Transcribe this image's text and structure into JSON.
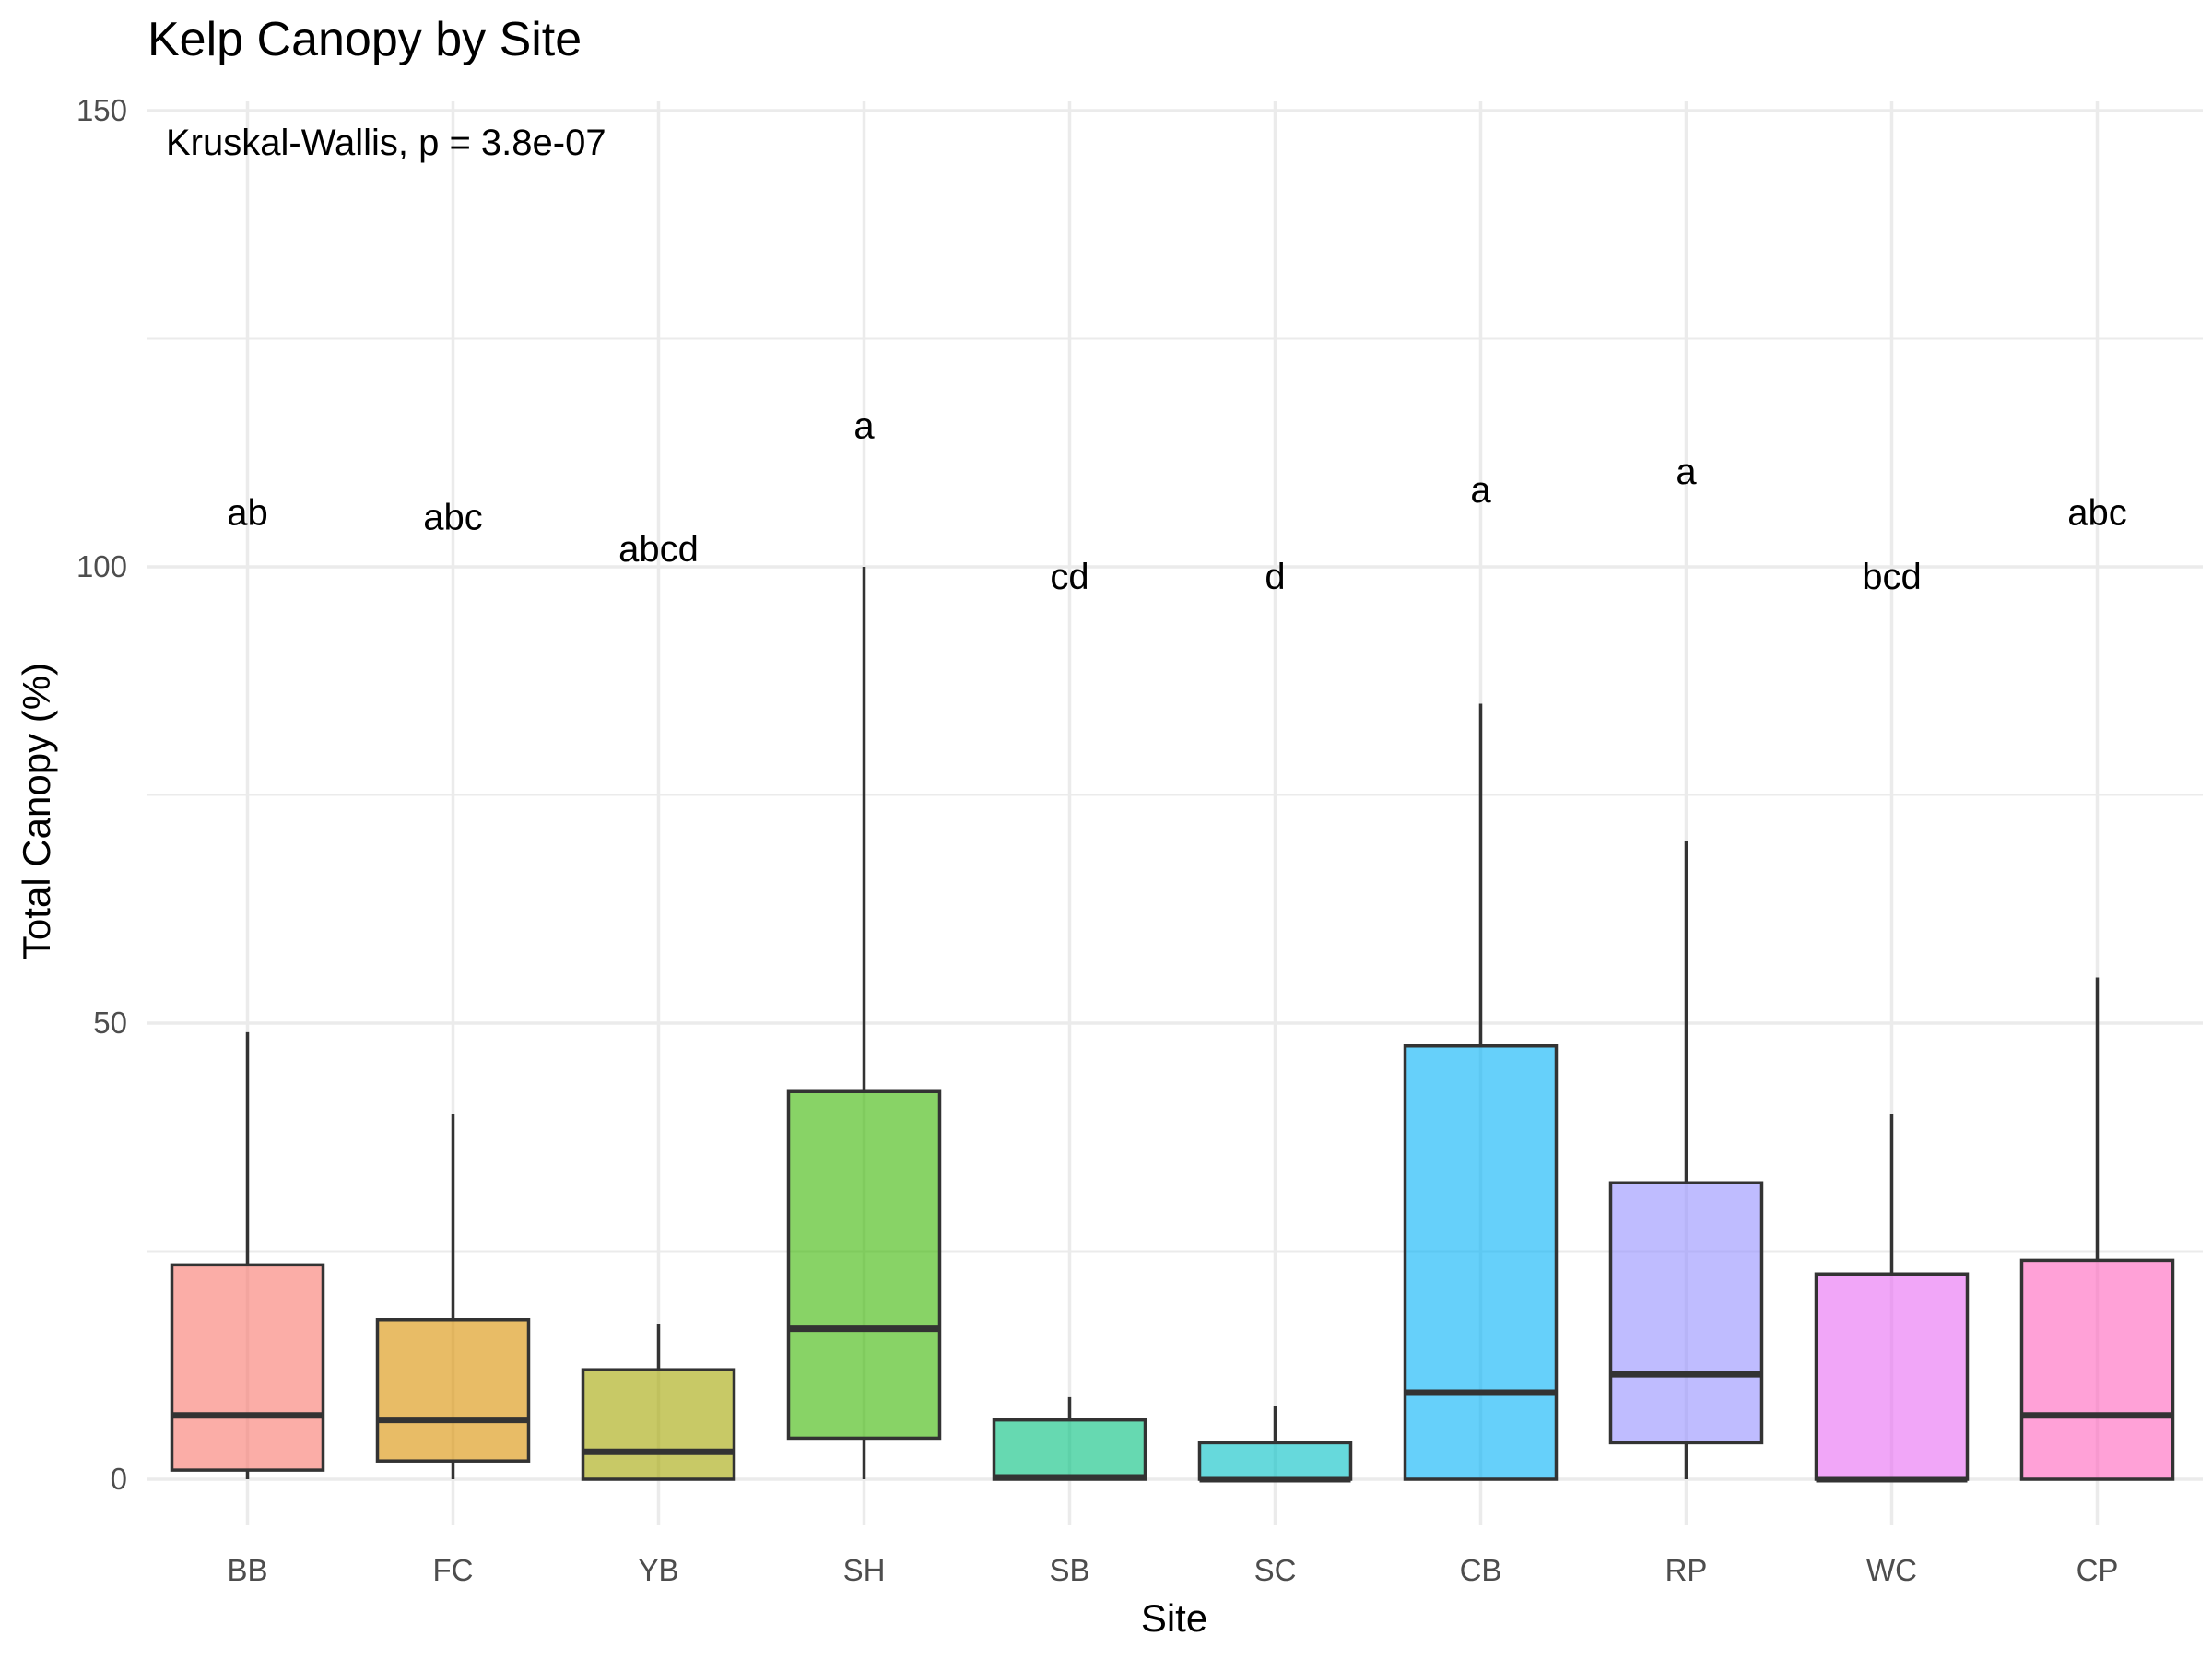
{
  "chart_data": {
    "type": "boxplot",
    "title": "Kelp Canopy by Site",
    "xlabel": "Site",
    "ylabel": "Total Canopy (%)",
    "ylim": [
      -4,
      150
    ],
    "y_ticks": [
      0,
      50,
      100,
      150
    ],
    "grid": true,
    "legend": "none",
    "annotation": "Kruskal-Wallis, p = 3.8e-07",
    "categories": [
      "BB",
      "FC",
      "YB",
      "SH",
      "SB",
      "SC",
      "CB",
      "RP",
      "WC",
      "CP"
    ],
    "boxes": [
      {
        "site": "BB",
        "min": 0,
        "q1": 1,
        "median": 7,
        "q3": 23.5,
        "max": 49,
        "letter": "ab",
        "letter_y": 106,
        "color": "#F8766D"
      },
      {
        "site": "FC",
        "min": 0,
        "q1": 2,
        "median": 6.5,
        "q3": 17.5,
        "max": 40,
        "letter": "abc",
        "letter_y": 105.5,
        "color": "#D89000"
      },
      {
        "site": "YB",
        "min": 0,
        "q1": 0,
        "median": 3,
        "q3": 12,
        "max": 17,
        "letter": "abcd",
        "letter_y": 102,
        "color": "#A3A500"
      },
      {
        "site": "SH",
        "min": 0,
        "q1": 4.5,
        "median": 16.5,
        "q3": 42.5,
        "max": 100,
        "letter": "a",
        "letter_y": 115.5,
        "color": "#39B600"
      },
      {
        "site": "SB",
        "min": 0,
        "q1": 0,
        "median": 0.2,
        "q3": 6.5,
        "max": 9,
        "letter": "cd",
        "letter_y": 99,
        "color": "#00BF7D"
      },
      {
        "site": "SC",
        "min": 0,
        "q1": 0,
        "median": 0,
        "q3": 4,
        "max": 8,
        "letter": "d",
        "letter_y": 99,
        "color": "#00BFC4"
      },
      {
        "site": "CB",
        "min": 0,
        "q1": 0,
        "median": 9.5,
        "q3": 47.5,
        "max": 85,
        "letter": "a",
        "letter_y": 108.5,
        "color": "#00B0F6"
      },
      {
        "site": "RP",
        "min": 0,
        "q1": 4,
        "median": 11.5,
        "q3": 32.5,
        "max": 70,
        "letter": "a",
        "letter_y": 110.5,
        "color": "#9590FF"
      },
      {
        "site": "WC",
        "min": 0,
        "q1": 0,
        "median": 0,
        "q3": 22.5,
        "max": 40,
        "letter": "bcd",
        "letter_y": 99,
        "color": "#E76BF3"
      },
      {
        "site": "CP",
        "min": 0,
        "q1": 0,
        "median": 7,
        "q3": 24,
        "max": 55,
        "letter": "abc",
        "letter_y": 106,
        "color": "#FF62BC"
      }
    ]
  }
}
